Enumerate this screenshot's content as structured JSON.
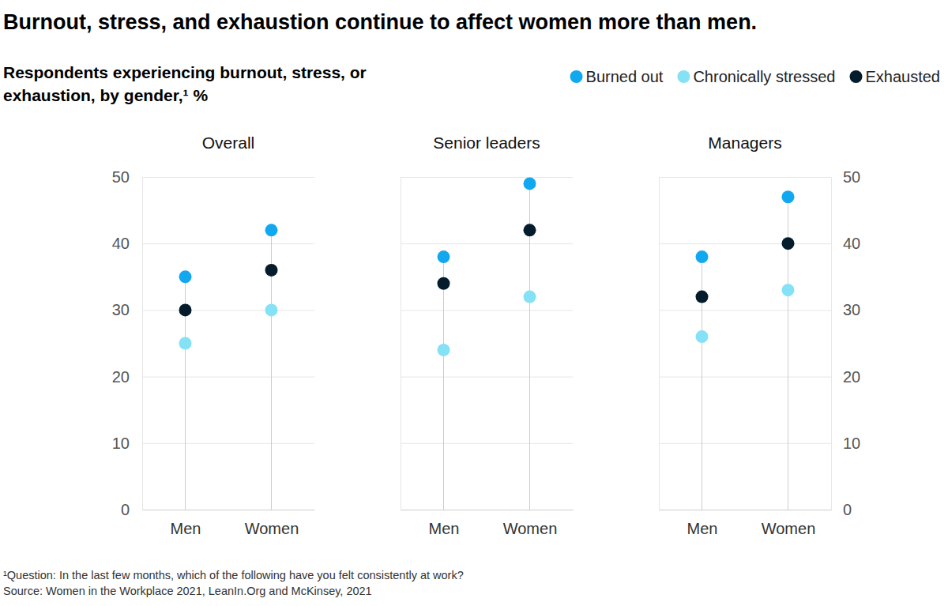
{
  "chart_data": {
    "type": "dot",
    "title": "Burnout, stress, and exhaustion continue to affect women more than men.",
    "subtitle": "Respondents experiencing burnout, stress, or exhaustion, by gender,¹ %",
    "footnote": "¹Question: In the last few months, which of the following have you felt consistently at work?",
    "source": "Source: Women in the Workplace 2021, LeanIn.Org and McKinsey, 2021",
    "groups": [
      "Overall",
      "Senior leaders",
      "Managers"
    ],
    "categories": [
      "Men",
      "Women",
      "Men",
      "Women",
      "Men",
      "Women"
    ],
    "series": [
      {
        "name": "Burned out",
        "color": "#12a8f0",
        "values": [
          35,
          42,
          38,
          49,
          38,
          47
        ]
      },
      {
        "name": "Chronically stressed",
        "color": "#84e1f6",
        "values": [
          25,
          30,
          24,
          32,
          26,
          33
        ]
      },
      {
        "name": "Exhausted",
        "color": "#051c2c",
        "values": [
          30,
          36,
          34,
          42,
          32,
          40
        ]
      }
    ],
    "ylim": [
      0,
      50
    ],
    "yticks": [
      0,
      10,
      20,
      30,
      40,
      50
    ],
    "grid": true,
    "legend": "top-right"
  }
}
